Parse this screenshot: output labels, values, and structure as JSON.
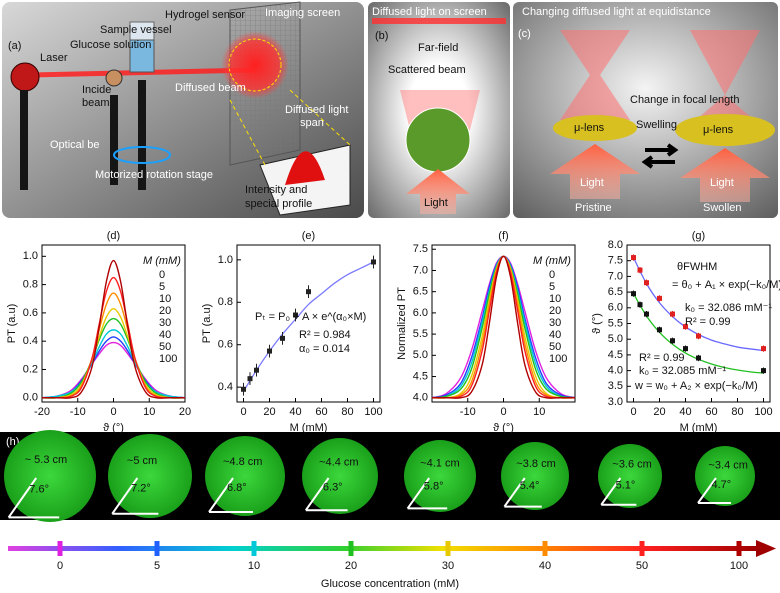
{
  "panel_a": {
    "label": "(a)",
    "texts": [
      "Hydrogel sensor",
      "Sample vessel",
      "Glucose solution",
      "Laser",
      "Incide",
      "beam",
      "Diffused beam",
      "Imaging screen",
      "Diffused light",
      "span",
      "Optical be",
      "Motorized rotation stage",
      "Intensity and",
      "special profile"
    ]
  },
  "panel_b": {
    "label": "(b)",
    "texts": [
      "Diffused light on screen",
      "Far-field",
      "Scattered beam",
      "Light"
    ]
  },
  "panel_c": {
    "label": "(c)",
    "texts": [
      "Changing diffused light at equidistance",
      "Change in focal length",
      "μ-lens",
      "μ-lens",
      "Swelling",
      "Light",
      "Light",
      "Pristine",
      "Swollen"
    ]
  },
  "chart_data": [
    {
      "type": "line",
      "panel_label": "(d)",
      "xlabel": "ϑ (°)",
      "ylabel": "PT (a.u)",
      "legend_title": "M (mM)",
      "xlim": [
        -20,
        20
      ],
      "ylim": [
        -0.03,
        1.08
      ],
      "xticks": [
        -20,
        -10,
        0,
        10,
        20
      ],
      "yticks": [
        {
          "value": 0,
          "label": "0.0"
        },
        0.2,
        0.4,
        0.6,
        0.8,
        {
          "value": 1,
          "label": "1.0"
        }
      ],
      "x": [
        -20,
        -16,
        -12,
        -9,
        -6,
        -4,
        -2,
        0,
        2,
        4,
        6,
        9,
        12,
        16,
        20
      ],
      "series": [
        {
          "name": "0",
          "color": "#e020e0",
          "values": [
            0,
            0.01,
            0.05,
            0.13,
            0.24,
            0.31,
            0.37,
            0.39,
            0.37,
            0.31,
            0.24,
            0.13,
            0.05,
            0.01,
            0
          ]
        },
        {
          "name": "5",
          "color": "#2040ff",
          "values": [
            0,
            0.01,
            0.04,
            0.12,
            0.24,
            0.33,
            0.4,
            0.43,
            0.4,
            0.33,
            0.24,
            0.12,
            0.04,
            0.01,
            0
          ]
        },
        {
          "name": "10",
          "color": "#00c8d8",
          "values": [
            0,
            0.01,
            0.04,
            0.11,
            0.25,
            0.36,
            0.45,
            0.48,
            0.45,
            0.36,
            0.25,
            0.11,
            0.04,
            0.01,
            0
          ]
        },
        {
          "name": "20",
          "color": "#20c020",
          "values": [
            0,
            0,
            0.03,
            0.11,
            0.27,
            0.41,
            0.52,
            0.56,
            0.52,
            0.41,
            0.27,
            0.11,
            0.03,
            0,
            0
          ]
        },
        {
          "name": "30",
          "color": "#e8c800",
          "values": [
            0,
            0,
            0.02,
            0.09,
            0.27,
            0.43,
            0.57,
            0.63,
            0.57,
            0.43,
            0.27,
            0.09,
            0.02,
            0,
            0
          ]
        },
        {
          "name": "40",
          "color": "#ff8c00",
          "values": [
            0,
            0,
            0.01,
            0.08,
            0.28,
            0.48,
            0.66,
            0.74,
            0.66,
            0.48,
            0.28,
            0.08,
            0.01,
            0,
            0
          ]
        },
        {
          "name": "50",
          "color": "#ff2020",
          "values": [
            0,
            0,
            0.01,
            0.07,
            0.28,
            0.52,
            0.75,
            0.85,
            0.75,
            0.52,
            0.28,
            0.07,
            0.01,
            0,
            0
          ]
        },
        {
          "name": "100",
          "color": "#b00000",
          "values": [
            0,
            0,
            0,
            0.04,
            0.22,
            0.5,
            0.82,
            0.97,
            0.82,
            0.5,
            0.22,
            0.04,
            0,
            0,
            0
          ]
        }
      ]
    },
    {
      "type": "scatter",
      "panel_label": "(e)",
      "xlabel": "M (mM)",
      "ylabel": "PT (a.u)",
      "xlim": [
        -5,
        105
      ],
      "ylim": [
        0.33,
        1.07
      ],
      "xticks": [
        0,
        20,
        40,
        60,
        80,
        100
      ],
      "yticks": [
        0.4,
        0.6,
        0.8,
        {
          "value": 1,
          "label": "1.0"
        }
      ],
      "series": [
        {
          "color": "#222222",
          "x": [
            0,
            5,
            10,
            20,
            30,
            40,
            50,
            100
          ],
          "values": [
            0.39,
            0.44,
            0.48,
            0.57,
            0.63,
            0.74,
            0.85,
            0.99
          ],
          "errors": [
            0.03,
            0.03,
            0.03,
            0.03,
            0.03,
            0.03,
            0.03,
            0.03
          ]
        }
      ],
      "fits": [
        {
          "color": "#7b7bff",
          "x": [
            0,
            10,
            20,
            30,
            40,
            50,
            60,
            70,
            80,
            90,
            100
          ],
          "values": [
            0.38,
            0.48,
            0.57,
            0.65,
            0.72,
            0.79,
            0.84,
            0.89,
            0.93,
            0.96,
            0.99
          ]
        }
      ],
      "annotations": [
        {
          "text": "Pₜ = P₀ + A × e^(α₀×M)",
          "color": "#111111"
        },
        {
          "text": "R² = 0.984",
          "color": "#111111"
        },
        {
          "text": "α₀ = 0.014",
          "color": "#111111"
        }
      ]
    },
    {
      "type": "line",
      "panel_label": "(f)",
      "xlabel": "ϑ (°)",
      "ylabel": "Normalized PT",
      "legend_title": "M (mM)",
      "xlim": [
        -20,
        20
      ],
      "ylim": [
        -0.03,
        1.08
      ],
      "xticks": [
        -10,
        0,
        10
      ],
      "yticks": [
        {
          "value": 0,
          "label": "4.0"
        },
        {
          "value": 0.15,
          "label": "4.5"
        },
        {
          "value": 0.3,
          "label": "5.0"
        },
        {
          "value": 0.45,
          "label": "5.5"
        },
        {
          "value": 0.6,
          "label": "6.0"
        },
        {
          "value": 0.75,
          "label": "6.5"
        },
        {
          "value": 0.9,
          "label": "7.0"
        },
        {
          "value": 1.05,
          "label": "7.5"
        }
      ],
      "x": [
        -20,
        -16,
        -12,
        -9,
        -6,
        -4,
        -2,
        0,
        2,
        4,
        6,
        9,
        12,
        16,
        20
      ],
      "series": [
        {
          "name": "0",
          "color": "#e020e0",
          "values": [
            0,
            0.03,
            0.14,
            0.33,
            0.61,
            0.8,
            0.95,
            1,
            0.95,
            0.8,
            0.61,
            0.33,
            0.14,
            0.03,
            0
          ]
        },
        {
          "name": "5",
          "color": "#2040ff",
          "values": [
            0,
            0.02,
            0.1,
            0.28,
            0.56,
            0.78,
            0.94,
            1,
            0.94,
            0.78,
            0.56,
            0.28,
            0.1,
            0.02,
            0
          ]
        },
        {
          "name": "10",
          "color": "#00c8d8",
          "values": [
            0,
            0.01,
            0.08,
            0.24,
            0.53,
            0.75,
            0.93,
            1,
            0.93,
            0.75,
            0.53,
            0.24,
            0.08,
            0.01,
            0
          ]
        },
        {
          "name": "20",
          "color": "#20c020",
          "values": [
            0,
            0.01,
            0.06,
            0.2,
            0.49,
            0.73,
            0.92,
            1,
            0.92,
            0.73,
            0.49,
            0.2,
            0.06,
            0.01,
            0
          ]
        },
        {
          "name": "30",
          "color": "#e8c800",
          "values": [
            0,
            0,
            0.03,
            0.15,
            0.43,
            0.69,
            0.91,
            1,
            0.91,
            0.69,
            0.43,
            0.15,
            0.03,
            0,
            0
          ]
        },
        {
          "name": "40",
          "color": "#ff8c00",
          "values": [
            0,
            0,
            0.02,
            0.11,
            0.38,
            0.65,
            0.9,
            1,
            0.9,
            0.65,
            0.38,
            0.11,
            0.02,
            0,
            0
          ]
        },
        {
          "name": "50",
          "color": "#ff2020",
          "values": [
            0,
            0,
            0.01,
            0.08,
            0.33,
            0.61,
            0.88,
            1,
            0.88,
            0.61,
            0.33,
            0.08,
            0.01,
            0,
            0
          ]
        },
        {
          "name": "100",
          "color": "#b00000",
          "values": [
            0,
            0,
            0,
            0.04,
            0.23,
            0.52,
            0.85,
            1,
            0.85,
            0.52,
            0.23,
            0.04,
            0,
            0,
            0
          ]
        }
      ]
    },
    {
      "type": "scatter",
      "panel_label": "(g)",
      "xlabel": "M (mM)",
      "ylabel": "ϑ (°)",
      "xlim": [
        -5,
        105
      ],
      "ylim": [
        3,
        8
      ],
      "xticks": [
        0,
        20,
        40,
        60,
        80,
        100
      ],
      "yticks": [
        {
          "value": 3,
          "label": "3.0"
        },
        3.5,
        {
          "value": 4,
          "label": "4.0"
        },
        4.5,
        {
          "value": 5,
          "label": "5.0"
        },
        5.5,
        {
          "value": 6,
          "label": "6.0"
        },
        6.5,
        {
          "value": 7,
          "label": "7.0"
        },
        7.5,
        {
          "value": 8,
          "label": "8.0"
        }
      ],
      "series": [
        {
          "color": "#e02020",
          "x": [
            0,
            5,
            10,
            20,
            30,
            40,
            50,
            100
          ],
          "values": [
            7.6,
            7.2,
            6.8,
            6.3,
            5.8,
            5.4,
            5.1,
            4.7
          ],
          "errors": [
            0.1,
            0.1,
            0.1,
            0.1,
            0.1,
            0.1,
            0.1,
            0.1
          ]
        },
        {
          "color": "#111111",
          "x": [
            0,
            5,
            10,
            20,
            30,
            40,
            50,
            100
          ],
          "values": [
            6.45,
            6.1,
            5.8,
            5.3,
            4.95,
            4.7,
            4.4,
            4.0
          ],
          "errors": [
            0.1,
            0.1,
            0.1,
            0.1,
            0.1,
            0.1,
            0.1,
            0.1
          ]
        }
      ],
      "fits": [
        {
          "color": "#6a6aff",
          "x": [
            0,
            10,
            20,
            30,
            40,
            50,
            60,
            70,
            80,
            90,
            100
          ],
          "values": [
            7.6,
            6.77,
            6.16,
            5.72,
            5.39,
            5.15,
            4.97,
            4.85,
            4.75,
            4.69,
            4.64
          ]
        },
        {
          "color": "#20c020",
          "x": [
            0,
            10,
            20,
            30,
            40,
            50,
            60,
            70,
            80,
            90,
            100
          ],
          "values": [
            6.45,
            5.74,
            5.22,
            4.84,
            4.56,
            4.36,
            4.21,
            4.1,
            4.02,
            3.96,
            3.92
          ]
        }
      ],
      "annotations": [
        {
          "text": "θFWHM",
          "color": "#e02020"
        },
        {
          "text": "= θ₀ + A₁ × exp(−k₀/M)",
          "color": "#e02020"
        },
        {
          "text": "k₀ = 32.086 mM⁻¹",
          "color": "#e02020"
        },
        {
          "text": "R² = 0.99",
          "color": "#e02020"
        },
        {
          "text": "R² = 0.99",
          "color": "#111111"
        },
        {
          "text": "k₀ = 32.085 mM⁻¹",
          "color": "#111111"
        },
        {
          "text": "w = w₀ + A₂ × exp(−k₀/M)",
          "color": "#111111"
        }
      ]
    }
  ],
  "panel_h": {
    "label": "(h)",
    "sizes": [
      "~ 5.3 cm",
      "~5 cm",
      "~4.8 cm",
      "~4.4 cm",
      "~4.1 cm",
      "~3.8 cm",
      "~3.6 cm",
      "~3.4 cm"
    ],
    "angles": [
      "7.6°",
      "7.2°",
      "6.8°",
      "6.3°",
      "5.8°",
      "5.4°",
      "5.1°",
      "4.7°"
    ]
  },
  "colorbar": {
    "title": "Glucose concentration (mM)",
    "categories": [
      0,
      5,
      10,
      20,
      30,
      40,
      50,
      100
    ],
    "colors": [
      "#e020e0",
      "#2060ff",
      "#00c8d8",
      "#20c020",
      "#e8c800",
      "#ff8c00",
      "#ff2020",
      "#b00000"
    ]
  }
}
